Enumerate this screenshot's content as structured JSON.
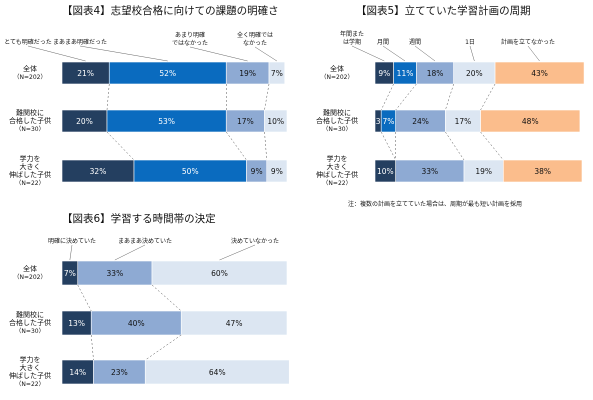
{
  "colors": {
    "c1": "#243f60",
    "c2": "#0a6bbf",
    "c3": "#8eaad3",
    "c4": "#dce6f2",
    "c5": "#fbbd8c"
  },
  "chart_data": [
    {
      "type": "bar",
      "title": "【図表4】志望校合格に向けての課題の明確さ",
      "legend": [
        "とても明確だった",
        "まあまあ明確だった",
        "あまり明確ではなかった",
        "全く明確ではなかった"
      ],
      "categories": [
        {
          "lines": [
            "全体"
          ],
          "n": "（N=202）"
        },
        {
          "lines": [
            "難関校に",
            "合格した子供"
          ],
          "n": "（N=30）"
        },
        {
          "lines": [
            "学力を",
            "大きく",
            "伸ばした子供"
          ],
          "n": "（N=22）"
        }
      ],
      "rows": [
        [
          21,
          52,
          19,
          7
        ],
        [
          20,
          53,
          17,
          10
        ],
        [
          32,
          50,
          9,
          9
        ]
      ],
      "labels": [
        [
          "21%",
          "52%",
          "19%",
          "7%"
        ],
        [
          "20%",
          "53%",
          "17%",
          "10%"
        ],
        [
          "32%",
          "50%",
          "9%",
          "9%"
        ]
      ],
      "colorKeys": [
        "c1",
        "c2",
        "c3",
        "c4"
      ]
    },
    {
      "type": "bar",
      "title": "【図表5】立てていた学習計画の周期",
      "legend": [
        "年間または学期",
        "月間",
        "週間",
        "1日",
        "計画を立てなかった"
      ],
      "categories": [
        {
          "lines": [
            "全体"
          ],
          "n": "（N=202）"
        },
        {
          "lines": [
            "難関校に",
            "合格した子供"
          ],
          "n": "（N=30）"
        },
        {
          "lines": [
            "学力を",
            "大きく",
            "伸ばした子供"
          ],
          "n": "（N=22）"
        }
      ],
      "rows": [
        [
          9,
          11,
          18,
          20,
          43
        ],
        [
          3,
          7,
          24,
          17,
          48
        ],
        [
          10,
          0,
          33,
          19,
          38
        ]
      ],
      "labels": [
        [
          "9%",
          "11%",
          "18%",
          "20%",
          "43%"
        ],
        [
          "3",
          "7%",
          "24%",
          "17%",
          "48%"
        ],
        [
          "10%",
          "",
          "33%",
          "19%",
          "38%"
        ]
      ],
      "colorKeys": [
        "c1",
        "c2",
        "c3",
        "c4",
        "c5"
      ],
      "note": "注：複数の計画を立てていた場合は、周期が最も短い計画を採用"
    },
    {
      "type": "bar",
      "title": "【図表6】学習する時間帯の決定",
      "legend": [
        "明確に決めていた",
        "まあまあ決めていた",
        "決めていなかった"
      ],
      "categories": [
        {
          "lines": [
            "全体"
          ],
          "n": "（N=202）"
        },
        {
          "lines": [
            "難関校に",
            "合格した子供"
          ],
          "n": "（N=30）"
        },
        {
          "lines": [
            "学力を",
            "大きく",
            "伸ばした子供"
          ],
          "n": "（N=22）"
        }
      ],
      "rows": [
        [
          7,
          33,
          60
        ],
        [
          13,
          40,
          47
        ],
        [
          14,
          23,
          64
        ]
      ],
      "labels": [
        [
          "7%",
          "33%",
          "60%"
        ],
        [
          "13%",
          "40%",
          "47%"
        ],
        [
          "14%",
          "23%",
          "64%"
        ]
      ],
      "colorKeys": [
        "c1",
        "c3",
        "c4"
      ]
    }
  ]
}
